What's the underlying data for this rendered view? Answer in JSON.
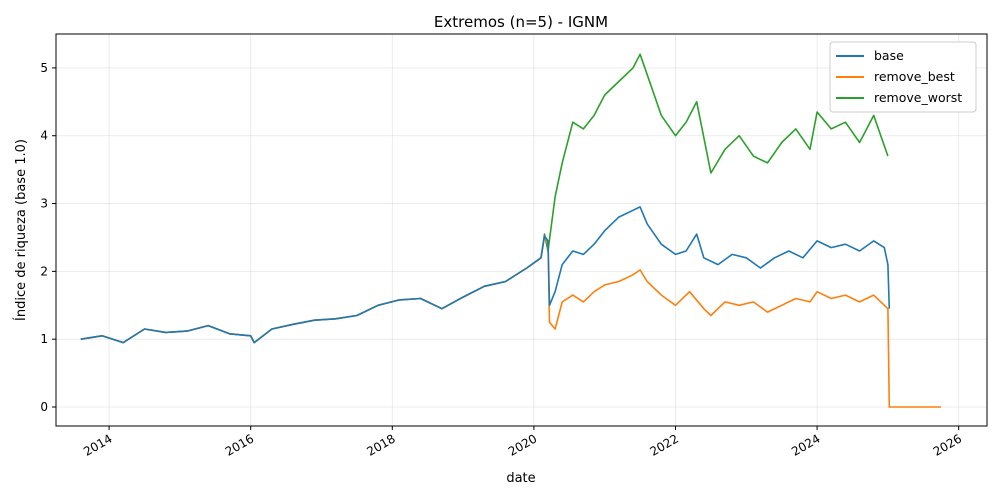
{
  "chart_data": {
    "type": "line",
    "title": "Extremos (n=5) - IGNM",
    "xlabel": "date",
    "ylabel": "Índice de riqueza (base 1.0)",
    "xlim": [
      2013.25,
      2026.4
    ],
    "ylim": [
      -0.28,
      5.5
    ],
    "grid": true,
    "legend_position": "top-right",
    "x_ticks": [
      2014,
      2016,
      2018,
      2020,
      2022,
      2024,
      2026
    ],
    "x_tick_labels": [
      "2014",
      "2016",
      "2018",
      "2020",
      "2022",
      "2024",
      "2026"
    ],
    "y_ticks": [
      0,
      1,
      2,
      3,
      4,
      5
    ],
    "y_tick_labels": [
      "0",
      "1",
      "2",
      "3",
      "4",
      "5"
    ],
    "series": [
      {
        "name": "base",
        "color": "#1f77b4",
        "x": [
          2013.6,
          2013.9,
          2014.2,
          2014.5,
          2014.8,
          2015.1,
          2015.4,
          2015.7,
          2016.0,
          2016.05,
          2016.3,
          2016.6,
          2016.9,
          2017.2,
          2017.5,
          2017.8,
          2018.1,
          2018.4,
          2018.7,
          2019.0,
          2019.3,
          2019.6,
          2019.9,
          2020.1,
          2020.15,
          2020.2,
          2020.22,
          2020.3,
          2020.4,
          2020.55,
          2020.7,
          2020.85,
          2021.0,
          2021.2,
          2021.4,
          2021.5,
          2021.6,
          2021.8,
          2022.0,
          2022.15,
          2022.3,
          2022.4,
          2022.6,
          2022.8,
          2023.0,
          2023.2,
          2023.4,
          2023.6,
          2023.8,
          2024.0,
          2024.2,
          2024.4,
          2024.6,
          2024.8,
          2024.95,
          2025.0,
          2025.02
        ],
        "y": [
          1.0,
          1.05,
          0.95,
          1.15,
          1.1,
          1.12,
          1.2,
          1.08,
          1.05,
          0.95,
          1.15,
          1.22,
          1.28,
          1.3,
          1.35,
          1.5,
          1.58,
          1.6,
          1.45,
          1.62,
          1.78,
          1.85,
          2.05,
          2.2,
          2.52,
          2.45,
          1.5,
          1.7,
          2.1,
          2.3,
          2.25,
          2.4,
          2.6,
          2.8,
          2.9,
          2.95,
          2.7,
          2.4,
          2.25,
          2.3,
          2.55,
          2.2,
          2.1,
          2.25,
          2.2,
          2.05,
          2.2,
          2.3,
          2.2,
          2.45,
          2.35,
          2.4,
          2.3,
          2.45,
          2.35,
          2.1,
          1.45
        ]
      },
      {
        "name": "remove_best",
        "color": "#ff7f0e",
        "x": [
          2013.6,
          2013.9,
          2014.2,
          2014.5,
          2014.8,
          2015.1,
          2015.4,
          2015.7,
          2016.0,
          2016.05,
          2016.3,
          2016.6,
          2016.9,
          2017.2,
          2017.5,
          2017.8,
          2018.1,
          2018.4,
          2018.7,
          2019.0,
          2019.3,
          2019.6,
          2019.9,
          2020.1,
          2020.15,
          2020.2,
          2020.22,
          2020.3,
          2020.4,
          2020.55,
          2020.7,
          2020.85,
          2021.0,
          2021.2,
          2021.4,
          2021.5,
          2021.6,
          2021.8,
          2022.0,
          2022.2,
          2022.4,
          2022.5,
          2022.7,
          2022.9,
          2023.1,
          2023.3,
          2023.5,
          2023.7,
          2023.9,
          2024.0,
          2024.2,
          2024.4,
          2024.6,
          2024.8,
          2025.0,
          2025.02,
          2025.75
        ],
        "y": [
          1.0,
          1.05,
          0.95,
          1.15,
          1.1,
          1.12,
          1.2,
          1.08,
          1.05,
          0.95,
          1.15,
          1.22,
          1.28,
          1.3,
          1.35,
          1.5,
          1.58,
          1.6,
          1.45,
          1.62,
          1.78,
          1.85,
          2.05,
          2.2,
          2.52,
          2.4,
          1.25,
          1.15,
          1.55,
          1.65,
          1.55,
          1.7,
          1.8,
          1.85,
          1.95,
          2.02,
          1.85,
          1.65,
          1.5,
          1.7,
          1.45,
          1.35,
          1.55,
          1.5,
          1.55,
          1.4,
          1.5,
          1.6,
          1.55,
          1.7,
          1.6,
          1.65,
          1.55,
          1.65,
          1.45,
          0.0,
          0.0
        ]
      },
      {
        "name": "remove_worst",
        "color": "#2ca02c",
        "x": [
          2013.6,
          2013.9,
          2014.2,
          2014.5,
          2014.8,
          2015.1,
          2015.4,
          2015.7,
          2016.0,
          2016.05,
          2016.3,
          2016.6,
          2016.9,
          2017.2,
          2017.5,
          2017.8,
          2018.1,
          2018.4,
          2018.7,
          2019.0,
          2019.3,
          2019.6,
          2019.9,
          2020.1,
          2020.15,
          2020.2,
          2020.3,
          2020.4,
          2020.55,
          2020.7,
          2020.85,
          2021.0,
          2021.2,
          2021.4,
          2021.5,
          2021.6,
          2021.8,
          2022.0,
          2022.15,
          2022.3,
          2022.5,
          2022.7,
          2022.9,
          2023.1,
          2023.3,
          2023.5,
          2023.7,
          2023.9,
          2024.0,
          2024.2,
          2024.4,
          2024.6,
          2024.8,
          2025.0
        ],
        "y": [
          1.0,
          1.05,
          0.95,
          1.15,
          1.1,
          1.12,
          1.2,
          1.08,
          1.05,
          0.95,
          1.15,
          1.22,
          1.28,
          1.3,
          1.35,
          1.5,
          1.58,
          1.6,
          1.45,
          1.62,
          1.78,
          1.85,
          2.05,
          2.2,
          2.55,
          2.3,
          3.1,
          3.6,
          4.2,
          4.1,
          4.3,
          4.6,
          4.8,
          5.0,
          5.2,
          4.9,
          4.3,
          4.0,
          4.2,
          4.5,
          3.45,
          3.8,
          4.0,
          3.7,
          3.6,
          3.9,
          4.1,
          3.8,
          4.35,
          4.1,
          4.2,
          3.9,
          4.3,
          3.7
        ]
      }
    ]
  }
}
